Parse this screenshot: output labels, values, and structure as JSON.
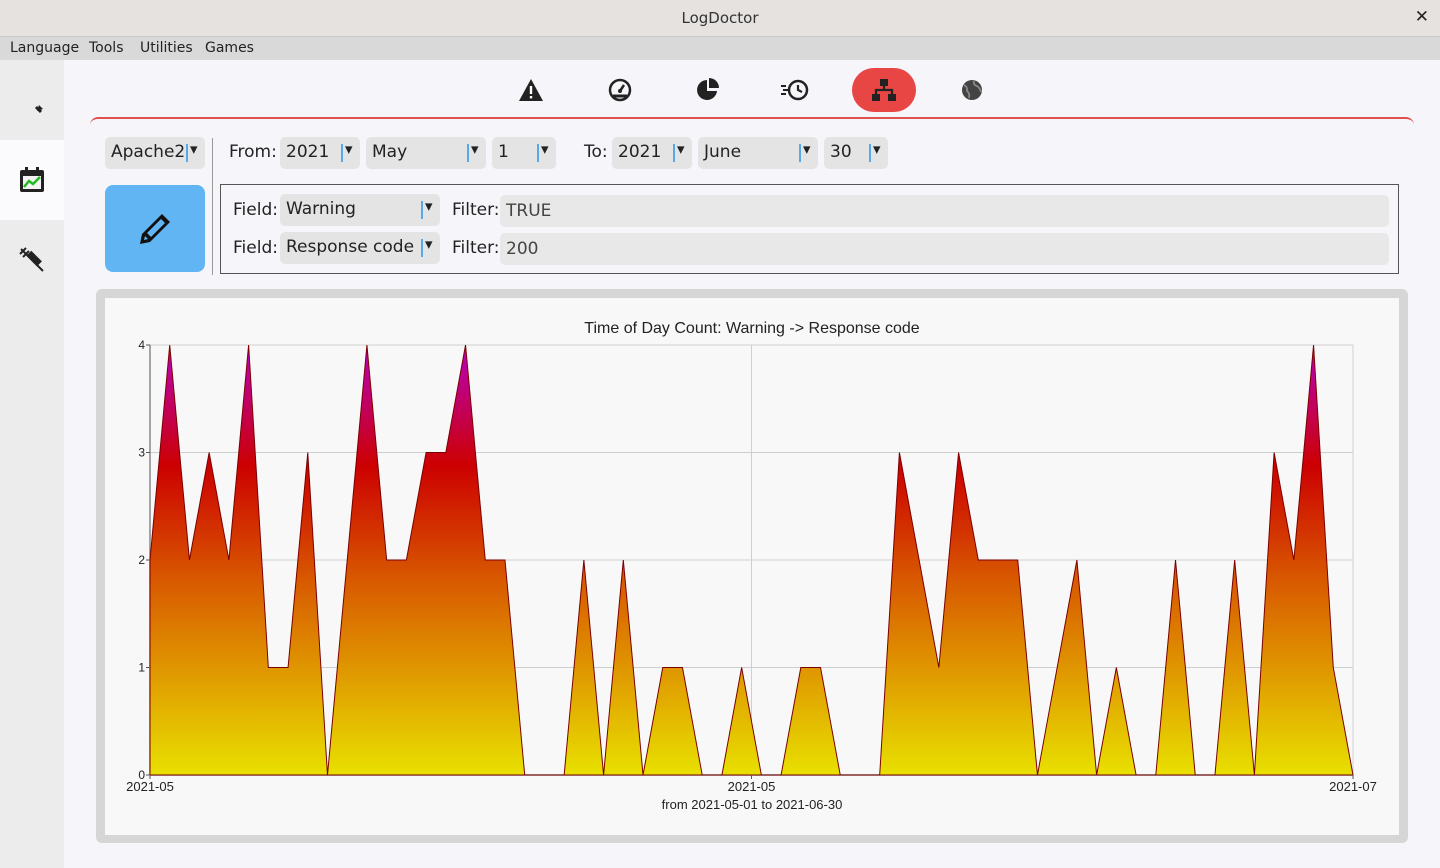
{
  "window": {
    "title": "LogDoctor",
    "close_glyph": "✕"
  },
  "menu": {
    "items": [
      "Language",
      "Tools",
      "Utilities",
      "Games"
    ]
  },
  "sidebar": {
    "items": [
      {
        "icon": "pencil-icon"
      },
      {
        "icon": "calendar-chart-icon",
        "active": true
      },
      {
        "icon": "syringe-icon"
      }
    ]
  },
  "toolbar": {
    "tabs": [
      {
        "icon": "warning-icon"
      },
      {
        "icon": "speedometer-icon"
      },
      {
        "icon": "pie-chart-icon"
      },
      {
        "icon": "history-clock-icon"
      },
      {
        "icon": "hierarchy-icon",
        "active": true
      },
      {
        "icon": "globe-icon"
      }
    ],
    "accent": "#e84545"
  },
  "controls": {
    "webserver": "Apache2",
    "from_label": "From:",
    "from": {
      "year": "2021",
      "month": "May",
      "day": "1"
    },
    "to_label": "To:",
    "to": {
      "year": "2021",
      "month": "June",
      "day": "30"
    },
    "draw_icon": "pencil-draw-icon",
    "rows": [
      {
        "field_label": "Field:",
        "field": "Warning",
        "filter_label": "Filter:",
        "filter": "TRUE"
      },
      {
        "field_label": "Field:",
        "field": "Response code",
        "filter_label": "Filter:",
        "filter": "200"
      }
    ]
  },
  "chart_data": {
    "type": "area",
    "title": "Time of Day Count: Warning -> Response code",
    "xlabel": "from 2021-05-01 to 2021-06-30",
    "ylabel": "",
    "x_ticks": [
      "2021-05",
      "2021-05",
      "2021-07"
    ],
    "y_ticks": [
      "0",
      "1",
      "2",
      "3",
      "4"
    ],
    "ylim": [
      0,
      4
    ],
    "grid": true,
    "gradient": [
      "#e8e000",
      "#d45000",
      "#cc0000",
      "#b800b8"
    ],
    "values": [
      2,
      4,
      2,
      3,
      2,
      4,
      1,
      1,
      3,
      0,
      2,
      4,
      2,
      2,
      3,
      3,
      4,
      2,
      2,
      0,
      0,
      0,
      2,
      0,
      2,
      0,
      1,
      1,
      0,
      0,
      1,
      0,
      0,
      1,
      1,
      0,
      0,
      0,
      3,
      2,
      1,
      3,
      2,
      2,
      2,
      0,
      1,
      2,
      0,
      1,
      0,
      0,
      2,
      0,
      0,
      2,
      0,
      3,
      2,
      4,
      1,
      0
    ]
  }
}
